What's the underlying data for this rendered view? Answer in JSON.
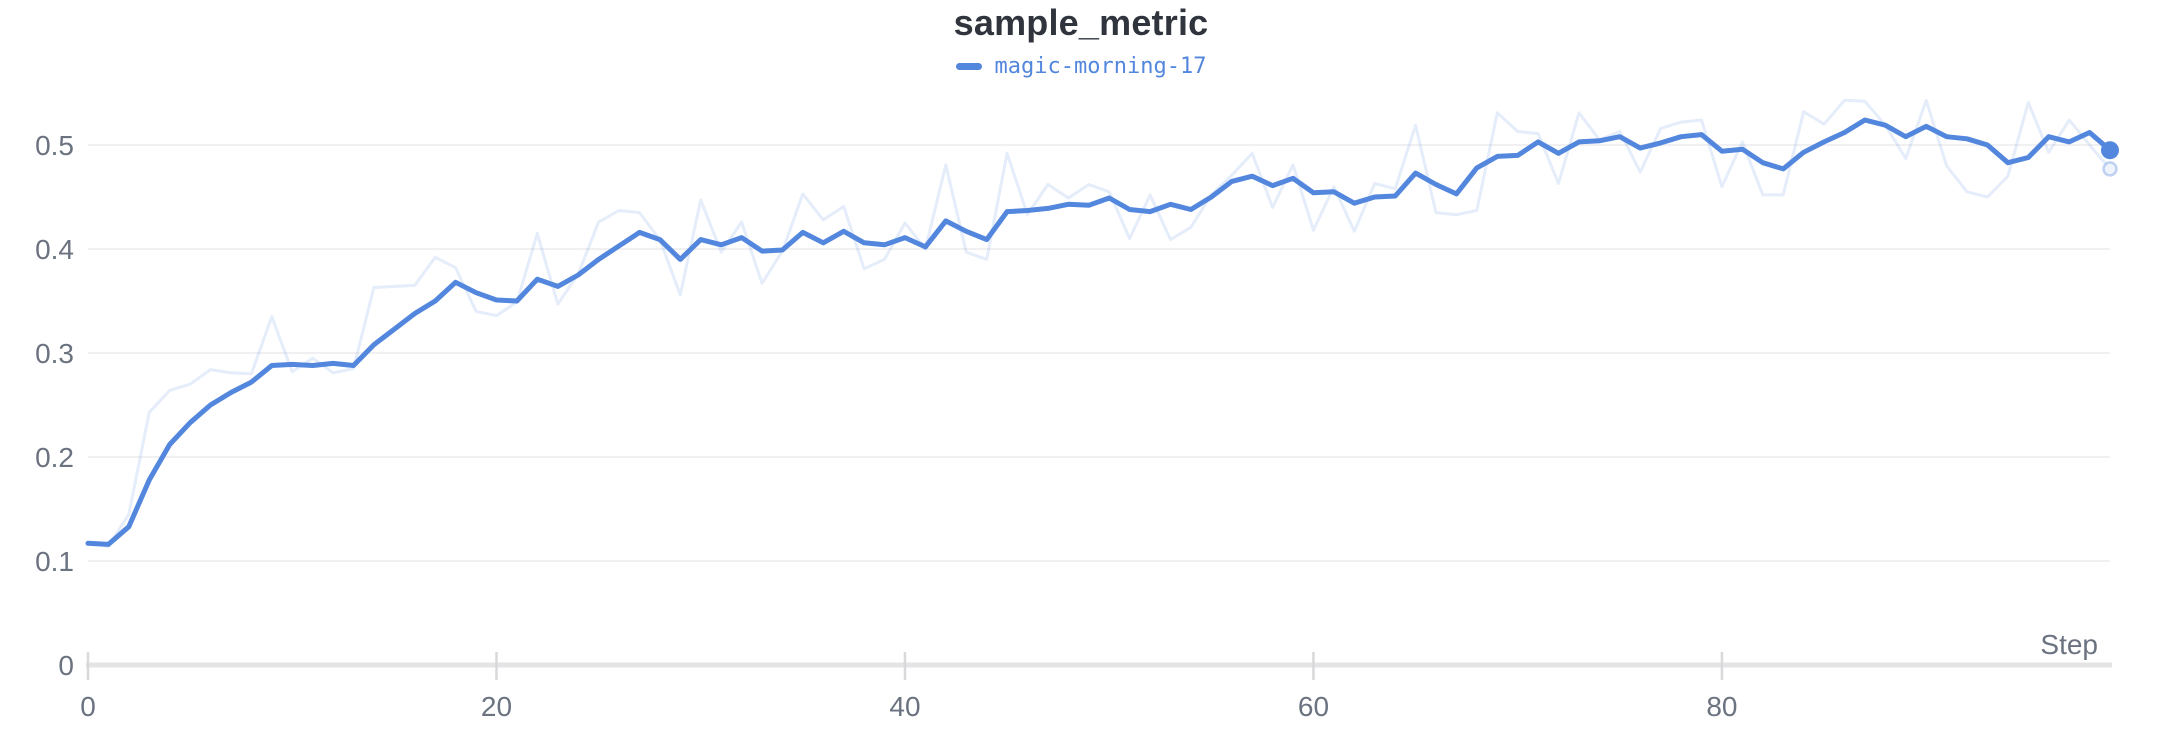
{
  "panel": {
    "title": "sample_metric",
    "legend": [
      {
        "run_name": "magic-morning-17",
        "color": "#5387DD"
      }
    ]
  },
  "colors": {
    "line": "#5387DD",
    "line_faint": "rgba(83,135,221,0.15)",
    "ring_fill": "#eef3fc",
    "ring_stroke": "rgba(83,135,221,0.35)",
    "gridline": "#ececee",
    "axis_line": "#e4e4e7",
    "tick_mark": "#d9d9dc",
    "axis_text": "#6b7280",
    "title_text": "#2f343d"
  },
  "chart_data": {
    "type": "line",
    "title": "sample_metric",
    "xlabel": "Step",
    "ylabel": "",
    "xlim": [
      0,
      99
    ],
    "ylim": [
      0,
      0.56
    ],
    "grid": "horizontal",
    "legend_position": "top-center",
    "x_ticks": [
      {
        "value": 0,
        "label": "0"
      },
      {
        "value": 20,
        "label": "20"
      },
      {
        "value": 40,
        "label": "40"
      },
      {
        "value": 60,
        "label": "60"
      },
      {
        "value": 80,
        "label": "80"
      }
    ],
    "y_ticks": [
      {
        "value": 0.0,
        "label": "0"
      },
      {
        "value": 0.1,
        "label": "0.1"
      },
      {
        "value": 0.2,
        "label": "0.2"
      },
      {
        "value": 0.3,
        "label": "0.3"
      },
      {
        "value": 0.4,
        "label": "0.4"
      },
      {
        "value": 0.5,
        "label": "0.5"
      }
    ],
    "x": [
      0,
      1,
      2,
      3,
      4,
      5,
      6,
      7,
      8,
      9,
      10,
      11,
      12,
      13,
      14,
      15,
      16,
      17,
      18,
      19,
      20,
      21,
      22,
      23,
      24,
      25,
      26,
      27,
      28,
      29,
      30,
      31,
      32,
      33,
      34,
      35,
      36,
      37,
      38,
      39,
      40,
      41,
      42,
      43,
      44,
      45,
      46,
      47,
      48,
      49,
      50,
      51,
      52,
      53,
      54,
      55,
      56,
      57,
      58,
      59,
      60,
      61,
      62,
      63,
      64,
      65,
      66,
      67,
      68,
      69,
      70,
      71,
      72,
      73,
      74,
      75,
      76,
      77,
      78,
      79,
      80,
      81,
      82,
      83,
      84,
      85,
      86,
      87,
      88,
      89,
      90,
      91,
      92,
      93,
      94,
      95,
      96,
      97,
      98,
      99
    ],
    "series": [
      {
        "name": "magic-morning-17 (original)",
        "role": "raw",
        "values": [
          0.117,
          0.114,
          0.145,
          0.243,
          0.264,
          0.27,
          0.284,
          0.281,
          0.28,
          0.335,
          0.282,
          0.295,
          0.281,
          0.285,
          0.363,
          0.364,
          0.365,
          0.392,
          0.382,
          0.34,
          0.336,
          0.349,
          0.415,
          0.347,
          0.376,
          0.426,
          0.437,
          0.435,
          0.409,
          0.356,
          0.447,
          0.397,
          0.426,
          0.367,
          0.398,
          0.453,
          0.428,
          0.441,
          0.381,
          0.39,
          0.425,
          0.4,
          0.481,
          0.397,
          0.39,
          0.492,
          0.433,
          0.462,
          0.449,
          0.462,
          0.455,
          0.41,
          0.452,
          0.409,
          0.421,
          0.452,
          0.471,
          0.492,
          0.44,
          0.481,
          0.418,
          0.46,
          0.417,
          0.463,
          0.458,
          0.519,
          0.435,
          0.433,
          0.437,
          0.531,
          0.513,
          0.511,
          0.463,
          0.531,
          0.505,
          0.513,
          0.474,
          0.516,
          0.522,
          0.524,
          0.46,
          0.503,
          0.452,
          0.452,
          0.532,
          0.52,
          0.543,
          0.542,
          0.519,
          0.487,
          0.543,
          0.48,
          0.455,
          0.45,
          0.47,
          0.541,
          0.493,
          0.524,
          0.5,
          0.477
        ]
      },
      {
        "name": "magic-morning-17",
        "role": "smoothed",
        "values": [
          0.117,
          0.116,
          0.133,
          0.178,
          0.212,
          0.233,
          0.25,
          0.262,
          0.272,
          0.288,
          0.289,
          0.288,
          0.29,
          0.288,
          0.308,
          0.323,
          0.338,
          0.35,
          0.368,
          0.358,
          0.351,
          0.35,
          0.371,
          0.364,
          0.375,
          0.39,
          0.403,
          0.416,
          0.409,
          0.39,
          0.409,
          0.404,
          0.411,
          0.398,
          0.399,
          0.416,
          0.406,
          0.417,
          0.406,
          0.404,
          0.411,
          0.402,
          0.427,
          0.417,
          0.409,
          0.436,
          0.437,
          0.439,
          0.443,
          0.442,
          0.449,
          0.438,
          0.436,
          0.443,
          0.438,
          0.45,
          0.465,
          0.47,
          0.461,
          0.468,
          0.454,
          0.455,
          0.444,
          0.45,
          0.451,
          0.473,
          0.462,
          0.453,
          0.478,
          0.489,
          0.49,
          0.503,
          0.492,
          0.503,
          0.504,
          0.508,
          0.497,
          0.502,
          0.508,
          0.51,
          0.494,
          0.496,
          0.483,
          0.477,
          0.493,
          0.503,
          0.512,
          0.524,
          0.519,
          0.508,
          0.518,
          0.508,
          0.506,
          0.5,
          0.483,
          0.488,
          0.508,
          0.503,
          0.512,
          0.495
        ]
      }
    ]
  }
}
